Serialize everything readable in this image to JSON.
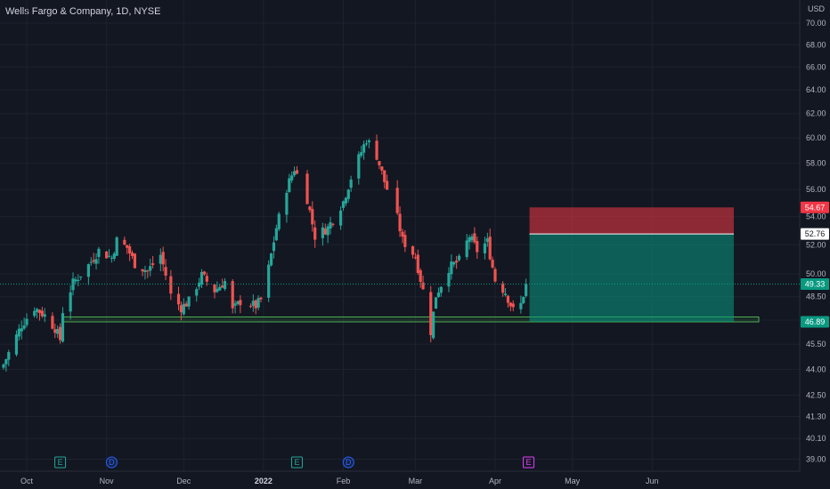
{
  "header": {
    "title": "Wells Fargo & Company, 1D, NYSE"
  },
  "price_axis": {
    "currency": "USD",
    "ticks": [
      "70.00",
      "68.00",
      "66.00",
      "64.00",
      "62.00",
      "60.00",
      "58.00",
      "56.00",
      "54.00",
      "52.00",
      "50.00",
      "48.50",
      "47.00",
      "45.50",
      "44.00",
      "42.50",
      "41.30",
      "40.10",
      "39.00"
    ]
  },
  "time_axis": {
    "labels": [
      {
        "text": "Oct",
        "bold": false
      },
      {
        "text": "Nov",
        "bold": false
      },
      {
        "text": "Dec",
        "bold": false
      },
      {
        "text": "2022",
        "bold": true
      },
      {
        "text": "Feb",
        "bold": false
      },
      {
        "text": "Mar",
        "bold": false
      },
      {
        "text": "Apr",
        "bold": false
      },
      {
        "text": "May",
        "bold": false
      },
      {
        "text": "Jun",
        "bold": false
      }
    ]
  },
  "price_labels": [
    {
      "text": "54.67",
      "role": "stop",
      "color": "#f23645"
    },
    {
      "text": "52.76",
      "role": "entry",
      "color": "#ffffff"
    },
    {
      "text": "49.33",
      "role": "current",
      "color": "#089981"
    },
    {
      "text": "46.89",
      "role": "target",
      "color": "#089981"
    }
  ],
  "event_badges": [
    {
      "letter": "E",
      "kind": "earnings",
      "color": "#26a69a"
    },
    {
      "letter": "D",
      "kind": "dividend",
      "color": "#2962ff"
    },
    {
      "letter": "E",
      "kind": "earnings",
      "color": "#26a69a"
    },
    {
      "letter": "D",
      "kind": "dividend",
      "color": "#2962ff"
    },
    {
      "letter": "E",
      "kind": "earnings-upcoming",
      "color": "#e040fb"
    }
  ],
  "colors": {
    "up": "#26a69a",
    "down": "#ef5350",
    "background": "#131722",
    "grid": "#1e222d",
    "zone": "#4caf50"
  },
  "chart_data": {
    "type": "candlestick",
    "title": "Wells Fargo & Company, 1D, NYSE",
    "period": [
      "2021-09-22",
      "2022-04-13"
    ],
    "y_unit": "USD",
    "ylim": [
      38.7,
      70.5
    ],
    "y_scale": "log",
    "grid": true,
    "legend": "none",
    "anchors": [
      [
        "2021-09-22",
        44.3
      ],
      [
        "2021-09-29",
        46.7
      ],
      [
        "2021-10-04",
        47.8
      ],
      [
        "2021-10-08",
        47.3
      ],
      [
        "2021-10-12",
        46.5
      ],
      [
        "2021-10-14",
        45.8
      ],
      [
        "2021-10-15",
        47.6
      ],
      [
        "2021-10-19",
        49.4
      ],
      [
        "2021-10-25",
        50.6
      ],
      [
        "2021-10-29",
        51.6
      ],
      [
        "2021-11-03",
        51.1
      ],
      [
        "2021-11-05",
        52.3
      ],
      [
        "2021-11-09",
        51.8
      ],
      [
        "2021-11-12",
        50.7
      ],
      [
        "2021-11-17",
        50.2
      ],
      [
        "2021-11-22",
        51.3
      ],
      [
        "2021-11-26",
        48.6
      ],
      [
        "2021-11-30",
        47.8
      ],
      [
        "2021-12-03",
        48.2
      ],
      [
        "2021-12-08",
        49.9
      ],
      [
        "2021-12-13",
        48.9
      ],
      [
        "2021-12-17",
        49.5
      ],
      [
        "2021-12-20",
        47.6
      ],
      [
        "2021-12-23",
        48.2
      ],
      [
        "2021-12-29",
        47.9
      ],
      [
        "2021-12-31",
        48.3
      ],
      [
        "2022-01-03",
        50.4
      ],
      [
        "2022-01-06",
        53.2
      ],
      [
        "2022-01-10",
        56.1
      ],
      [
        "2022-01-13",
        57.6
      ],
      [
        "2022-01-18",
        55.3
      ],
      [
        "2022-01-21",
        52.6
      ],
      [
        "2022-01-26",
        53.2
      ],
      [
        "2022-02-01",
        55.1
      ],
      [
        "2022-02-04",
        56.9
      ],
      [
        "2022-02-08",
        58.9
      ],
      [
        "2022-02-10",
        59.9
      ],
      [
        "2022-02-14",
        58.6
      ],
      [
        "2022-02-17",
        56.6
      ],
      [
        "2022-02-22",
        53.9
      ],
      [
        "2022-02-24",
        52.3
      ],
      [
        "2022-03-01",
        51.2
      ],
      [
        "2022-03-04",
        48.9
      ],
      [
        "2022-03-07",
        46.3
      ],
      [
        "2022-03-09",
        48.6
      ],
      [
        "2022-03-14",
        50.4
      ],
      [
        "2022-03-18",
        50.9
      ],
      [
        "2022-03-22",
        52.6
      ],
      [
        "2022-03-25",
        51.6
      ],
      [
        "2022-03-29",
        52.2
      ],
      [
        "2022-04-01",
        49.6
      ],
      [
        "2022-04-05",
        48.8
      ],
      [
        "2022-04-08",
        47.6
      ],
      [
        "2022-04-11",
        48.0
      ],
      [
        "2022-04-13",
        49.33
      ]
    ],
    "support_zone": [
      46.89,
      47.2
    ],
    "short_position": {
      "stop": 54.67,
      "entry": 52.76,
      "target": 46.89,
      "start": "2022-04-14",
      "end": "2022-05-26"
    },
    "current_price": 49.33
  }
}
